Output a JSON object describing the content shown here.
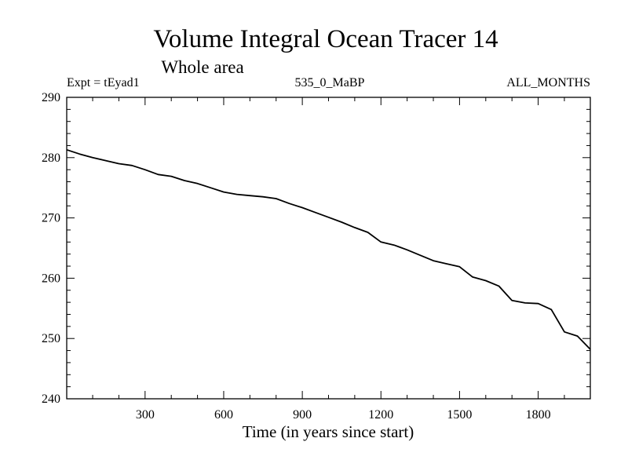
{
  "chart_data": {
    "type": "line",
    "title": "Volume Integral Ocean Tracer 14",
    "subtitle": "Whole area",
    "left_label": "Expt = tEyad1",
    "center_label": "535_0_MaBP",
    "right_label": "ALL_MONTHS",
    "xlabel": "Time (in years since start)",
    "ylabel": "",
    "xlim": [
      1,
      1999
    ],
    "ylim": [
      240,
      290
    ],
    "x_ticks": [
      300,
      600,
      900,
      1200,
      1500,
      1800
    ],
    "y_ticks": [
      240,
      250,
      260,
      270,
      280,
      290
    ],
    "grid": false,
    "series": [
      {
        "name": "Ocean Tracer 14",
        "color": "#000000",
        "x": [
          1,
          50,
          100,
          150,
          200,
          250,
          300,
          350,
          400,
          450,
          500,
          550,
          600,
          650,
          700,
          750,
          800,
          850,
          900,
          950,
          1000,
          1050,
          1100,
          1150,
          1200,
          1250,
          1300,
          1350,
          1400,
          1450,
          1500,
          1550,
          1600,
          1650,
          1700,
          1750,
          1800,
          1850,
          1900,
          1950,
          1999
        ],
        "values": [
          281.3,
          280.6,
          280.0,
          279.5,
          279.0,
          278.7,
          278.0,
          277.2,
          276.9,
          276.2,
          275.7,
          275.0,
          274.3,
          273.9,
          273.7,
          273.5,
          273.2,
          272.4,
          271.7,
          270.9,
          270.1,
          269.3,
          268.4,
          267.6,
          266.0,
          265.5,
          264.7,
          263.8,
          262.9,
          262.4,
          261.9,
          260.2,
          259.6,
          258.7,
          256.3,
          255.9,
          255.8,
          254.8,
          251.1,
          250.4,
          248.2
        ]
      }
    ]
  }
}
